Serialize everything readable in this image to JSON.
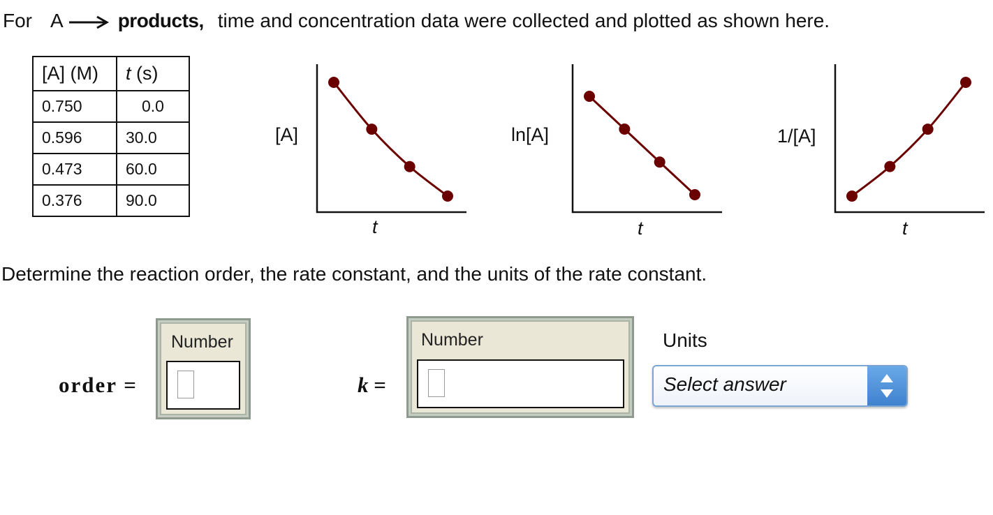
{
  "prompt": {
    "for": "For",
    "reactant": "A",
    "products": "products,",
    "rest": "time and concentration data were collected and plotted as shown here."
  },
  "table": {
    "headers": [
      "[A] (M)",
      "t",
      " (s)"
    ],
    "rows": [
      [
        "0.750",
        "0.0"
      ],
      [
        "0.596",
        "30.0"
      ],
      [
        "0.473",
        "60.0"
      ],
      [
        "0.376",
        "90.0"
      ]
    ]
  },
  "chart_data": [
    {
      "type": "line",
      "ylabel": "[A]",
      "xlabel": "t",
      "x": [
        0.0,
        30.0,
        60.0,
        90.0
      ],
      "series": [
        {
          "values": [
            0.75,
            0.596,
            0.473,
            0.376
          ]
        }
      ],
      "ylim": [
        0.35,
        0.78
      ],
      "color": "#6b0000"
    },
    {
      "type": "line",
      "ylabel": "ln[A]",
      "xlabel": "t",
      "x": [
        0.0,
        30.0,
        60.0,
        90.0
      ],
      "series": [
        {
          "values": [
            -0.288,
            -0.518,
            -0.749,
            -0.978
          ]
        }
      ],
      "ylim": [
        -1.05,
        -0.2
      ],
      "color": "#6b0000"
    },
    {
      "type": "line",
      "ylabel": "1/[A]",
      "xlabel": "t",
      "x": [
        0.0,
        30.0,
        60.0,
        90.0
      ],
      "series": [
        {
          "values": [
            1.333,
            1.678,
            2.114,
            2.66
          ]
        }
      ],
      "ylim": [
        1.25,
        2.75
      ],
      "color": "#6b0000"
    }
  ],
  "question": "Determine the reaction order, the rate constant, and the units of the rate constant.",
  "answers": {
    "order_label": "order =",
    "order_caption": "Number",
    "k_label": "k",
    "k_equals": " =",
    "k_caption": "Number",
    "units_label": "Units",
    "units_value": "Select answer"
  },
  "colors": {
    "marker": "#6b0000",
    "select_accent": "#4a8fd9",
    "box_bg": "#ebe7d7"
  }
}
